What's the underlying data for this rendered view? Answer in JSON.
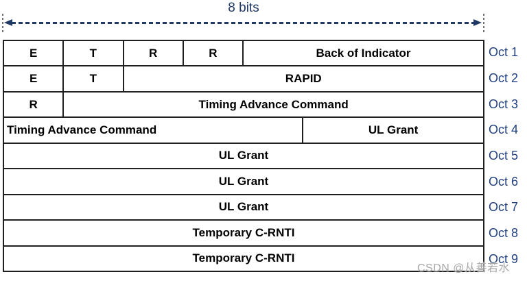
{
  "header": {
    "bits_label": "8 bits"
  },
  "colors": {
    "navy": "#1f3864",
    "oct_label_blue": "#203f80",
    "table_border": "#1f1f1f",
    "cell_text": "#000000",
    "watermark_gray": "#a6a6a6",
    "background": "#ffffff"
  },
  "table": {
    "columns_total_bits": 8,
    "rows": [
      {
        "oct": "Oct 1",
        "cells": [
          {
            "label": "E",
            "span": 1
          },
          {
            "label": "T",
            "span": 1
          },
          {
            "label": "R",
            "span": 1
          },
          {
            "label": "R",
            "span": 1
          },
          {
            "label": "Back of Indicator",
            "span": 4
          }
        ]
      },
      {
        "oct": "Oct 2",
        "cells": [
          {
            "label": "E",
            "span": 1
          },
          {
            "label": "T",
            "span": 1
          },
          {
            "label": "RAPID",
            "span": 6
          }
        ]
      },
      {
        "oct": "Oct 3",
        "cells": [
          {
            "label": "R",
            "span": 1
          },
          {
            "label": "Timing Advance Command",
            "span": 7
          }
        ]
      },
      {
        "oct": "Oct 4",
        "cells": [
          {
            "label": "Timing Advance Command",
            "span": 5,
            "align": "left"
          },
          {
            "label": "UL Grant",
            "span": 3
          }
        ]
      },
      {
        "oct": "Oct 5",
        "cells": [
          {
            "label": "UL Grant",
            "span": 8
          }
        ]
      },
      {
        "oct": "Oct 6",
        "cells": [
          {
            "label": "UL Grant",
            "span": 8
          }
        ]
      },
      {
        "oct": "Oct 7",
        "cells": [
          {
            "label": "UL Grant",
            "span": 8
          }
        ]
      },
      {
        "oct": "Oct 8",
        "cells": [
          {
            "label": "Temporary C-RNTI",
            "span": 8
          }
        ]
      },
      {
        "oct": "Oct 9",
        "cells": [
          {
            "label": "Temporary C-RNTI",
            "span": 8
          }
        ]
      }
    ]
  },
  "watermark": "CSDN @从善若水"
}
